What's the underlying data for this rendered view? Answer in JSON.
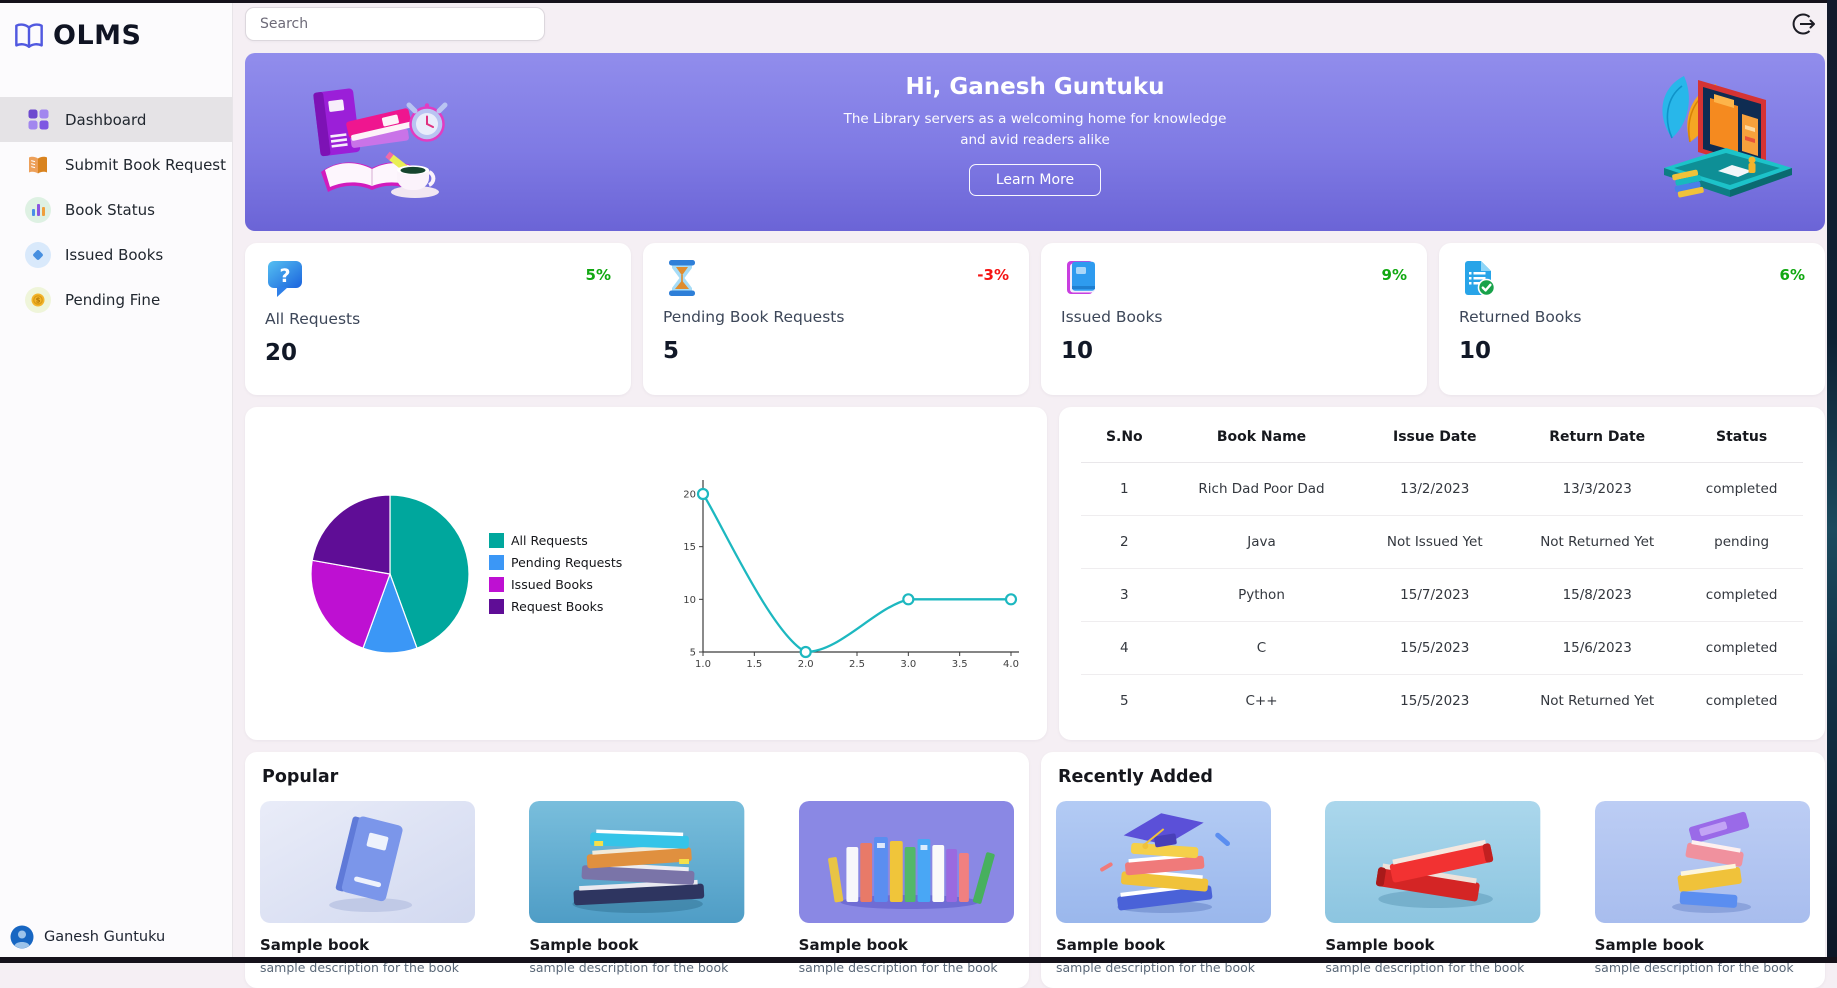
{
  "app": {
    "name": "OLMS"
  },
  "topbar": {
    "search_placeholder": "Search"
  },
  "sidebar": {
    "items": [
      {
        "label": "Dashboard",
        "icon": "dashboard-grid-icon",
        "active": true
      },
      {
        "label": "Submit Book Request",
        "icon": "open-book-icon",
        "active": false
      },
      {
        "label": "Book Status",
        "icon": "bar-chart-icon",
        "active": false
      },
      {
        "label": "Issued Books",
        "icon": "diamond-book-icon",
        "active": false
      },
      {
        "label": "Pending Fine",
        "icon": "coin-icon",
        "active": false
      }
    ],
    "user": {
      "name": "Ganesh Guntuku",
      "icon": "avatar-icon"
    }
  },
  "hero": {
    "title": "Hi, Ganesh Guntuku",
    "subtitle_line1": "The Library servers as a welcoming home for knowledge",
    "subtitle_line2": "and avid readers alike",
    "button_label": "Learn More"
  },
  "stats": [
    {
      "label": "All Requests",
      "value": "20",
      "change": "5%",
      "trend": "up",
      "icon": "question-bubble-icon"
    },
    {
      "label": "Pending Book Requests",
      "value": "5",
      "change": "-3%",
      "trend": "down",
      "icon": "hourglass-icon"
    },
    {
      "label": "Issued Books",
      "value": "10",
      "change": "9%",
      "trend": "up",
      "icon": "blue-book-icon"
    },
    {
      "label": "Returned Books",
      "value": "10",
      "change": "6%",
      "trend": "up",
      "icon": "document-check-icon"
    }
  ],
  "colors": {
    "positive": "#11A811",
    "negative": "#F51414",
    "hero_gradient_top": "#918DEC",
    "hero_gradient_bottom": "#6B64D6",
    "accent_teal": "#1DB8C0"
  },
  "chart_data": [
    {
      "type": "pie",
      "labels": [
        "All Requests",
        "Pending Requests",
        "Issued Books",
        "Request Books"
      ],
      "values": [
        20,
        5,
        10,
        10
      ],
      "colors": [
        "#00A79D",
        "#3B97F6",
        "#BE10D2",
        "#5F0D96"
      ],
      "legend_position": "right"
    },
    {
      "type": "line",
      "x": [
        1,
        2,
        3,
        4
      ],
      "y": [
        20,
        5,
        10,
        10
      ],
      "color": "#1DB8C0",
      "x_ticks": [
        1.0,
        1.5,
        2.0,
        2.5,
        3.0,
        3.5,
        4.0
      ],
      "y_ticks": [
        5,
        10,
        15,
        20
      ],
      "x_range": [
        1,
        4
      ],
      "y_range": [
        5,
        20
      ],
      "smooth": true,
      "marker": "open-circle",
      "grid": false
    }
  ],
  "table": {
    "headers": [
      "S.No",
      "Book Name",
      "Issue Date",
      "Return Date",
      "Status"
    ],
    "rows": [
      {
        "sno": "1",
        "book_name": "Rich Dad Poor Dad",
        "issue_date": "13/2/2023",
        "return_date": "13/3/2023",
        "status": "completed"
      },
      {
        "sno": "2",
        "book_name": "Java",
        "issue_date": "Not Issued Yet",
        "return_date": "Not Returned Yet",
        "status": "pending"
      },
      {
        "sno": "3",
        "book_name": "Python",
        "issue_date": "15/7/2023",
        "return_date": "15/8/2023",
        "status": "completed"
      },
      {
        "sno": "4",
        "book_name": "C",
        "issue_date": "15/5/2023",
        "return_date": "15/6/2023",
        "status": "completed"
      },
      {
        "sno": "5",
        "book_name": "C++",
        "issue_date": "15/5/2023",
        "return_date": "Not Returned Yet",
        "status": "completed"
      }
    ]
  },
  "popular": {
    "heading": "Popular",
    "books": [
      {
        "title": "Sample book",
        "description": "sample description for the book"
      },
      {
        "title": "Sample book",
        "description": "sample description for the book"
      },
      {
        "title": "Sample book",
        "description": "sample description for the book"
      }
    ]
  },
  "recently_added": {
    "heading": "Recently Added",
    "books": [
      {
        "title": "Sample book",
        "description": "sample description for the book"
      },
      {
        "title": "Sample book",
        "description": "sample description for the book"
      },
      {
        "title": "Sample book",
        "description": "sample description for the book"
      }
    ]
  }
}
